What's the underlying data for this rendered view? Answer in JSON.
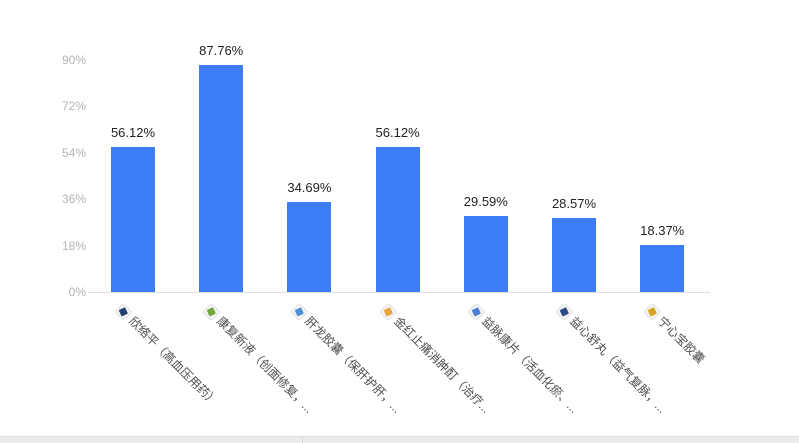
{
  "page": {
    "background": "#ffffff",
    "bottom_bar": {
      "track_color": "#ececec",
      "border_color": "#dcdcdc",
      "divider_color": "#d6d6d6",
      "divider_x": 302
    }
  },
  "chart_data": {
    "type": "bar",
    "title": "",
    "xlabel": "",
    "ylabel": "",
    "categories": [
      "欣络平（高血压用药）",
      "康复新液（创面修复，...",
      "肝龙胶囊（保肝护肝，...",
      "金红止痛消肿酊（治疗...",
      "益脉康片（活血化瘀、...",
      "益心舒丸（益气复脉，...",
      "宁心宝胶囊"
    ],
    "values": [
      56.12,
      87.76,
      34.69,
      56.12,
      29.59,
      28.57,
      18.37
    ],
    "value_labels": [
      "56.12%",
      "87.76%",
      "34.69%",
      "56.12%",
      "29.59%",
      "28.57%",
      "18.37%"
    ],
    "y_ticks": [
      "0%",
      "18%",
      "36%",
      "54%",
      "72%",
      "90%"
    ],
    "ylim": [
      0,
      90
    ],
    "grid": false,
    "legend": false,
    "bar_color": "#3c7df6",
    "value_label_color": "#222222",
    "y_tick_color": "#b3b3b3",
    "x_label_color": "#4d4d4d",
    "axis_line_color": "#e0e0e0",
    "category_icons": [
      {
        "name": "xinluoping-product-icon",
        "color": "#23406e"
      },
      {
        "name": "kangfuxinye-product-icon",
        "color": "#6fa83c"
      },
      {
        "name": "ganlongjiaonang-product-icon",
        "color": "#4f8fd6"
      },
      {
        "name": "jinhongzhitongxiaozhongding-product-icon",
        "color": "#e8a33d"
      },
      {
        "name": "yimaikangpian-product-icon",
        "color": "#4a7fd4"
      },
      {
        "name": "yixinshuwan-product-icon",
        "color": "#2c4a8a"
      },
      {
        "name": "ningxinbaojiaonang-product-icon",
        "color": "#d9a520"
      }
    ]
  }
}
